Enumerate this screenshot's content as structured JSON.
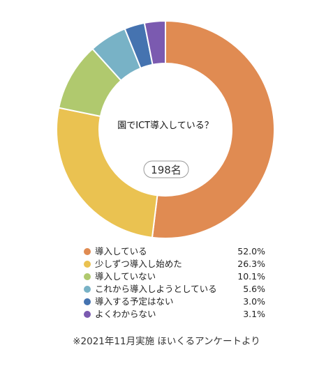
{
  "chart_data": {
    "type": "pie",
    "center_text": "園でICT導入している？",
    "total_label": "198名",
    "categories": [
      "導入している",
      "少しずつ導入し始めた",
      "導入していない",
      "これから導入しようとしている",
      "導入する予定はない",
      "よくわからない"
    ],
    "values": [
      52.0,
      26.3,
      10.1,
      5.6,
      3.0,
      3.1
    ],
    "value_labels": [
      "52.0%",
      "26.3%",
      "10.1%",
      "5.6%",
      "3.0%",
      "3.1%"
    ],
    "colors": [
      "#e08b52",
      "#eac251",
      "#b0c96e",
      "#78b2c6",
      "#4573b0",
      "#7b5ab0"
    ],
    "legend_position": "bottom"
  },
  "footnote": "※2021年11月実施 ほいくるアンケートより"
}
